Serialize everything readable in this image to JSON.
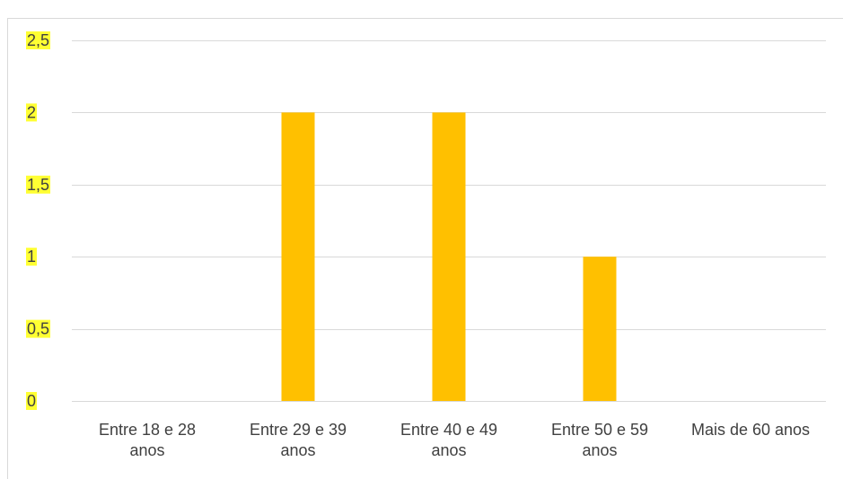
{
  "chart_data": {
    "type": "bar",
    "categories": [
      [
        "Entre 18 e 28",
        "anos"
      ],
      [
        "Entre 29 e 39",
        "anos"
      ],
      [
        "Entre 40 e 49",
        "anos"
      ],
      [
        "Entre 50 e 59",
        "anos"
      ],
      [
        "Mais de 60 anos"
      ]
    ],
    "values": [
      0,
      2,
      2,
      1,
      0
    ],
    "ylim": [
      0,
      2.5
    ],
    "yticks": [
      "0",
      "0,5",
      "1",
      "1,5",
      "2",
      "2,5"
    ],
    "ytick_values": [
      0,
      0.5,
      1,
      1.5,
      2,
      2.5
    ],
    "grid": true,
    "bar_color": "#FFC000",
    "tick_highlight_color": "#FFFF33",
    "gridline_color": "#D9D9D9",
    "border_color": "#D9D9D9"
  }
}
